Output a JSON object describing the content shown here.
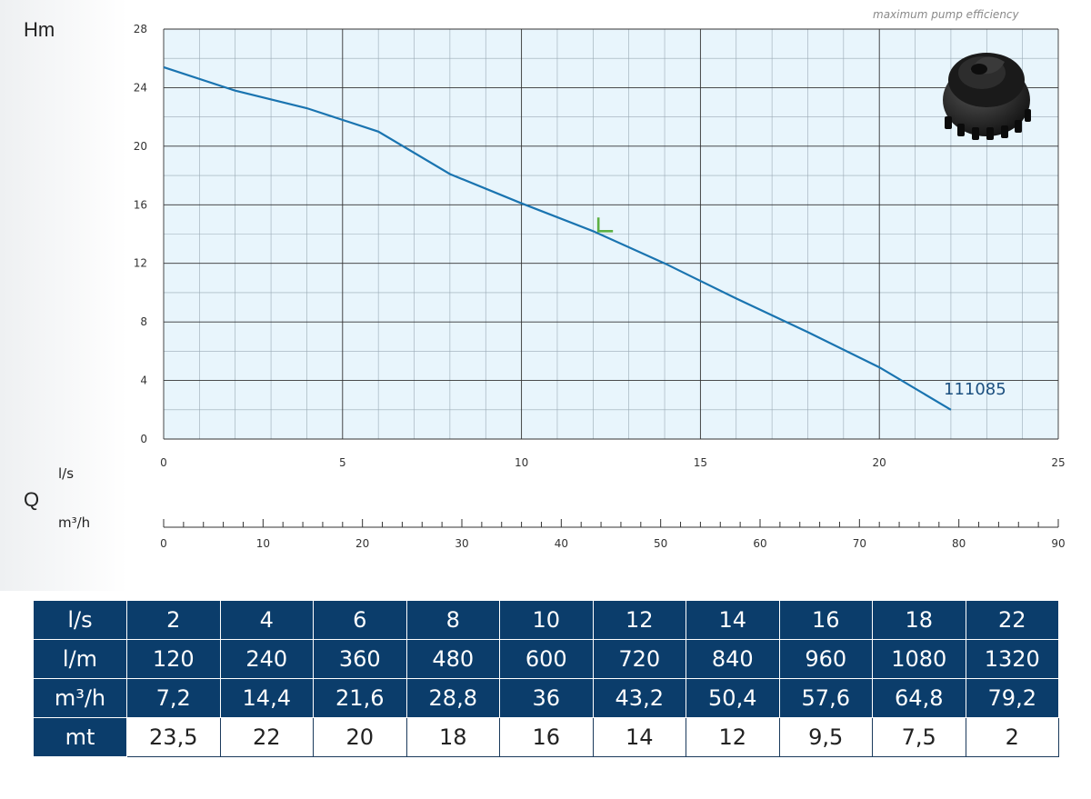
{
  "chart_data": {
    "type": "line",
    "ylabel": "Hm",
    "xlabel": "Q",
    "x_unit_top": "l/s",
    "x_unit_bottom": "m³/h",
    "ylim": [
      0,
      28
    ],
    "yticks": [
      0,
      4,
      8,
      12,
      16,
      20,
      24,
      28
    ],
    "xlim": [
      0,
      25
    ],
    "xticks": [
      0,
      5,
      10,
      15,
      20,
      25
    ],
    "x2lim": [
      0,
      90
    ],
    "x2ticks": [
      0,
      10,
      20,
      30,
      40,
      50,
      60,
      70,
      80,
      90
    ],
    "grid": true,
    "caption": "maximum pump efficiency",
    "series": [
      {
        "name": "111085",
        "color": "#1a74b0",
        "x": [
          0,
          2,
          4,
          6,
          8,
          10,
          12,
          14,
          16,
          18,
          20,
          22
        ],
        "y": [
          25.4,
          23.8,
          22.6,
          21.0,
          18.1,
          16.1,
          14.2,
          12.0,
          9.6,
          7.3,
          4.9,
          2.0
        ]
      }
    ],
    "marker_bep": {
      "x": 12.2,
      "y": 14.2,
      "color": "#5db043"
    }
  },
  "table": {
    "rows": [
      {
        "label": "l/s",
        "values": [
          "2",
          "4",
          "6",
          "8",
          "10",
          "12",
          "14",
          "16",
          "18",
          "22"
        ],
        "style": "hd"
      },
      {
        "label": "l/m",
        "values": [
          "120",
          "240",
          "360",
          "480",
          "600",
          "720",
          "840",
          "960",
          "1080",
          "1320"
        ],
        "style": "hd"
      },
      {
        "label": "m³/h",
        "values": [
          "7,2",
          "14,4",
          "21,6",
          "28,8",
          "36",
          "43,2",
          "50,4",
          "57,6",
          "64,8",
          "79,2"
        ],
        "style": "hd"
      },
      {
        "label": "mt",
        "values": [
          "23,5",
          "22",
          "20",
          "18",
          "16",
          "14",
          "12",
          "9,5",
          "7,5",
          "2"
        ],
        "style": "lite"
      }
    ]
  },
  "colors": {
    "plot_bg": "#e8f5fc",
    "grid_major": "#333333",
    "grid_minor": "#9aaab5",
    "table_header": "#0b3d6b"
  },
  "product_image": "impeller-icon"
}
